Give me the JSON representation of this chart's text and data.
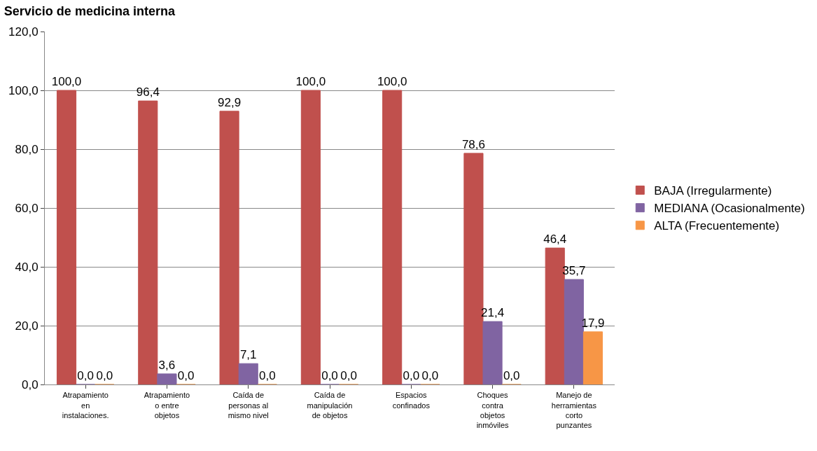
{
  "chart_data": {
    "type": "bar",
    "title": "Servicio de medicina interna",
    "categories": [
      "Atrapamiento en instalaciones.",
      "Atrapamiento o entre objetos",
      "Caída de personas al mismo nivel",
      "Caída de manipulación de objetos",
      "Espacios confinados",
      "Choques contra objetos inmóviles",
      "Manejo de herramientas corto punzantes"
    ],
    "series": [
      {
        "name": "BAJA (Irregularmente)",
        "color": "#c0504d",
        "values": [
          100.0,
          96.4,
          92.9,
          100.0,
          100.0,
          78.6,
          46.4
        ],
        "value_labels": [
          "100,0",
          "96,4",
          "92,9",
          "100,0",
          "100,0",
          "78,6",
          "46,4"
        ]
      },
      {
        "name": "MEDIANA (Ocasionalmente)",
        "color": "#8064a2",
        "values": [
          0.0,
          3.6,
          7.1,
          0.0,
          0.0,
          21.4,
          35.7
        ],
        "value_labels": [
          "0,0",
          "3,6",
          "7,1",
          "0,0",
          "0,0",
          "21,4",
          "35,7"
        ]
      },
      {
        "name": "ALTA (Frecuentemente)",
        "color": "#f79646",
        "values": [
          0.0,
          0.0,
          0.0,
          0.0,
          0.0,
          0.0,
          17.9
        ],
        "value_labels": [
          "0,0",
          "0,0",
          "0,0",
          "0,0",
          "0,0",
          "0,0",
          "17,9"
        ]
      }
    ],
    "ylim": [
      0,
      120
    ],
    "yticks": [
      {
        "value": 0,
        "label": "0,0"
      },
      {
        "value": 20,
        "label": "20,0"
      },
      {
        "value": 40,
        "label": "40,0"
      },
      {
        "value": 60,
        "label": "60,0"
      },
      {
        "value": 80,
        "label": "80,0"
      },
      {
        "value": 100,
        "label": "100,0"
      },
      {
        "value": 120,
        "label": "120,0"
      }
    ],
    "grid": "y",
    "legend": "right"
  }
}
